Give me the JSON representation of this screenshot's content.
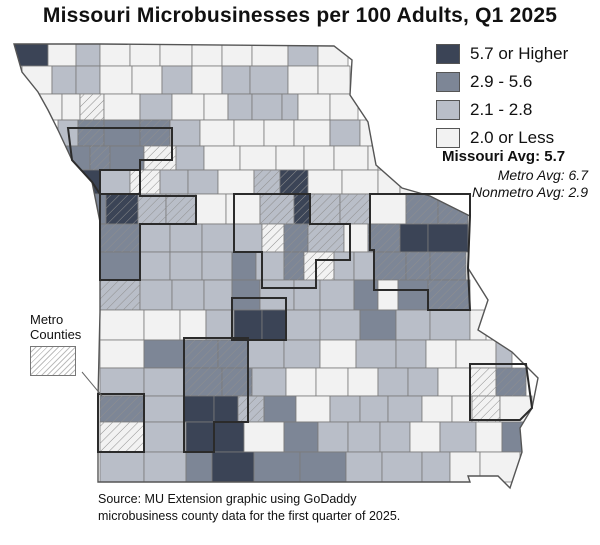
{
  "title": "Missouri Microbusinesses per 100 Adults, Q1 2025",
  "legend": [
    {
      "label": "5.7 or Higher",
      "color": "#3b4456"
    },
    {
      "label": "2.9 - 5.6",
      "color": "#7d8696"
    },
    {
      "label": "2.1 - 2.8",
      "color": "#b9bec8"
    },
    {
      "label": "2.0 or Less",
      "color": "#f2f2f2"
    }
  ],
  "averages": {
    "missouri": "Missouri Avg: 5.7",
    "metro": "Metro Avg: 6.7",
    "nonmetro": "Nonmetro Avg: 2.9"
  },
  "metro_key": {
    "label_line1": "Metro",
    "label_line2": "Counties"
  },
  "source": {
    "line1": "Source: MU Extension graphic using GoDaddy",
    "line2": "microbusiness county data for the first quarter of 2025."
  },
  "colors": {
    "border": "#7a7a7a",
    "metro_outline": "#2b2b2b",
    "hatch": "#9a9a9a"
  }
}
